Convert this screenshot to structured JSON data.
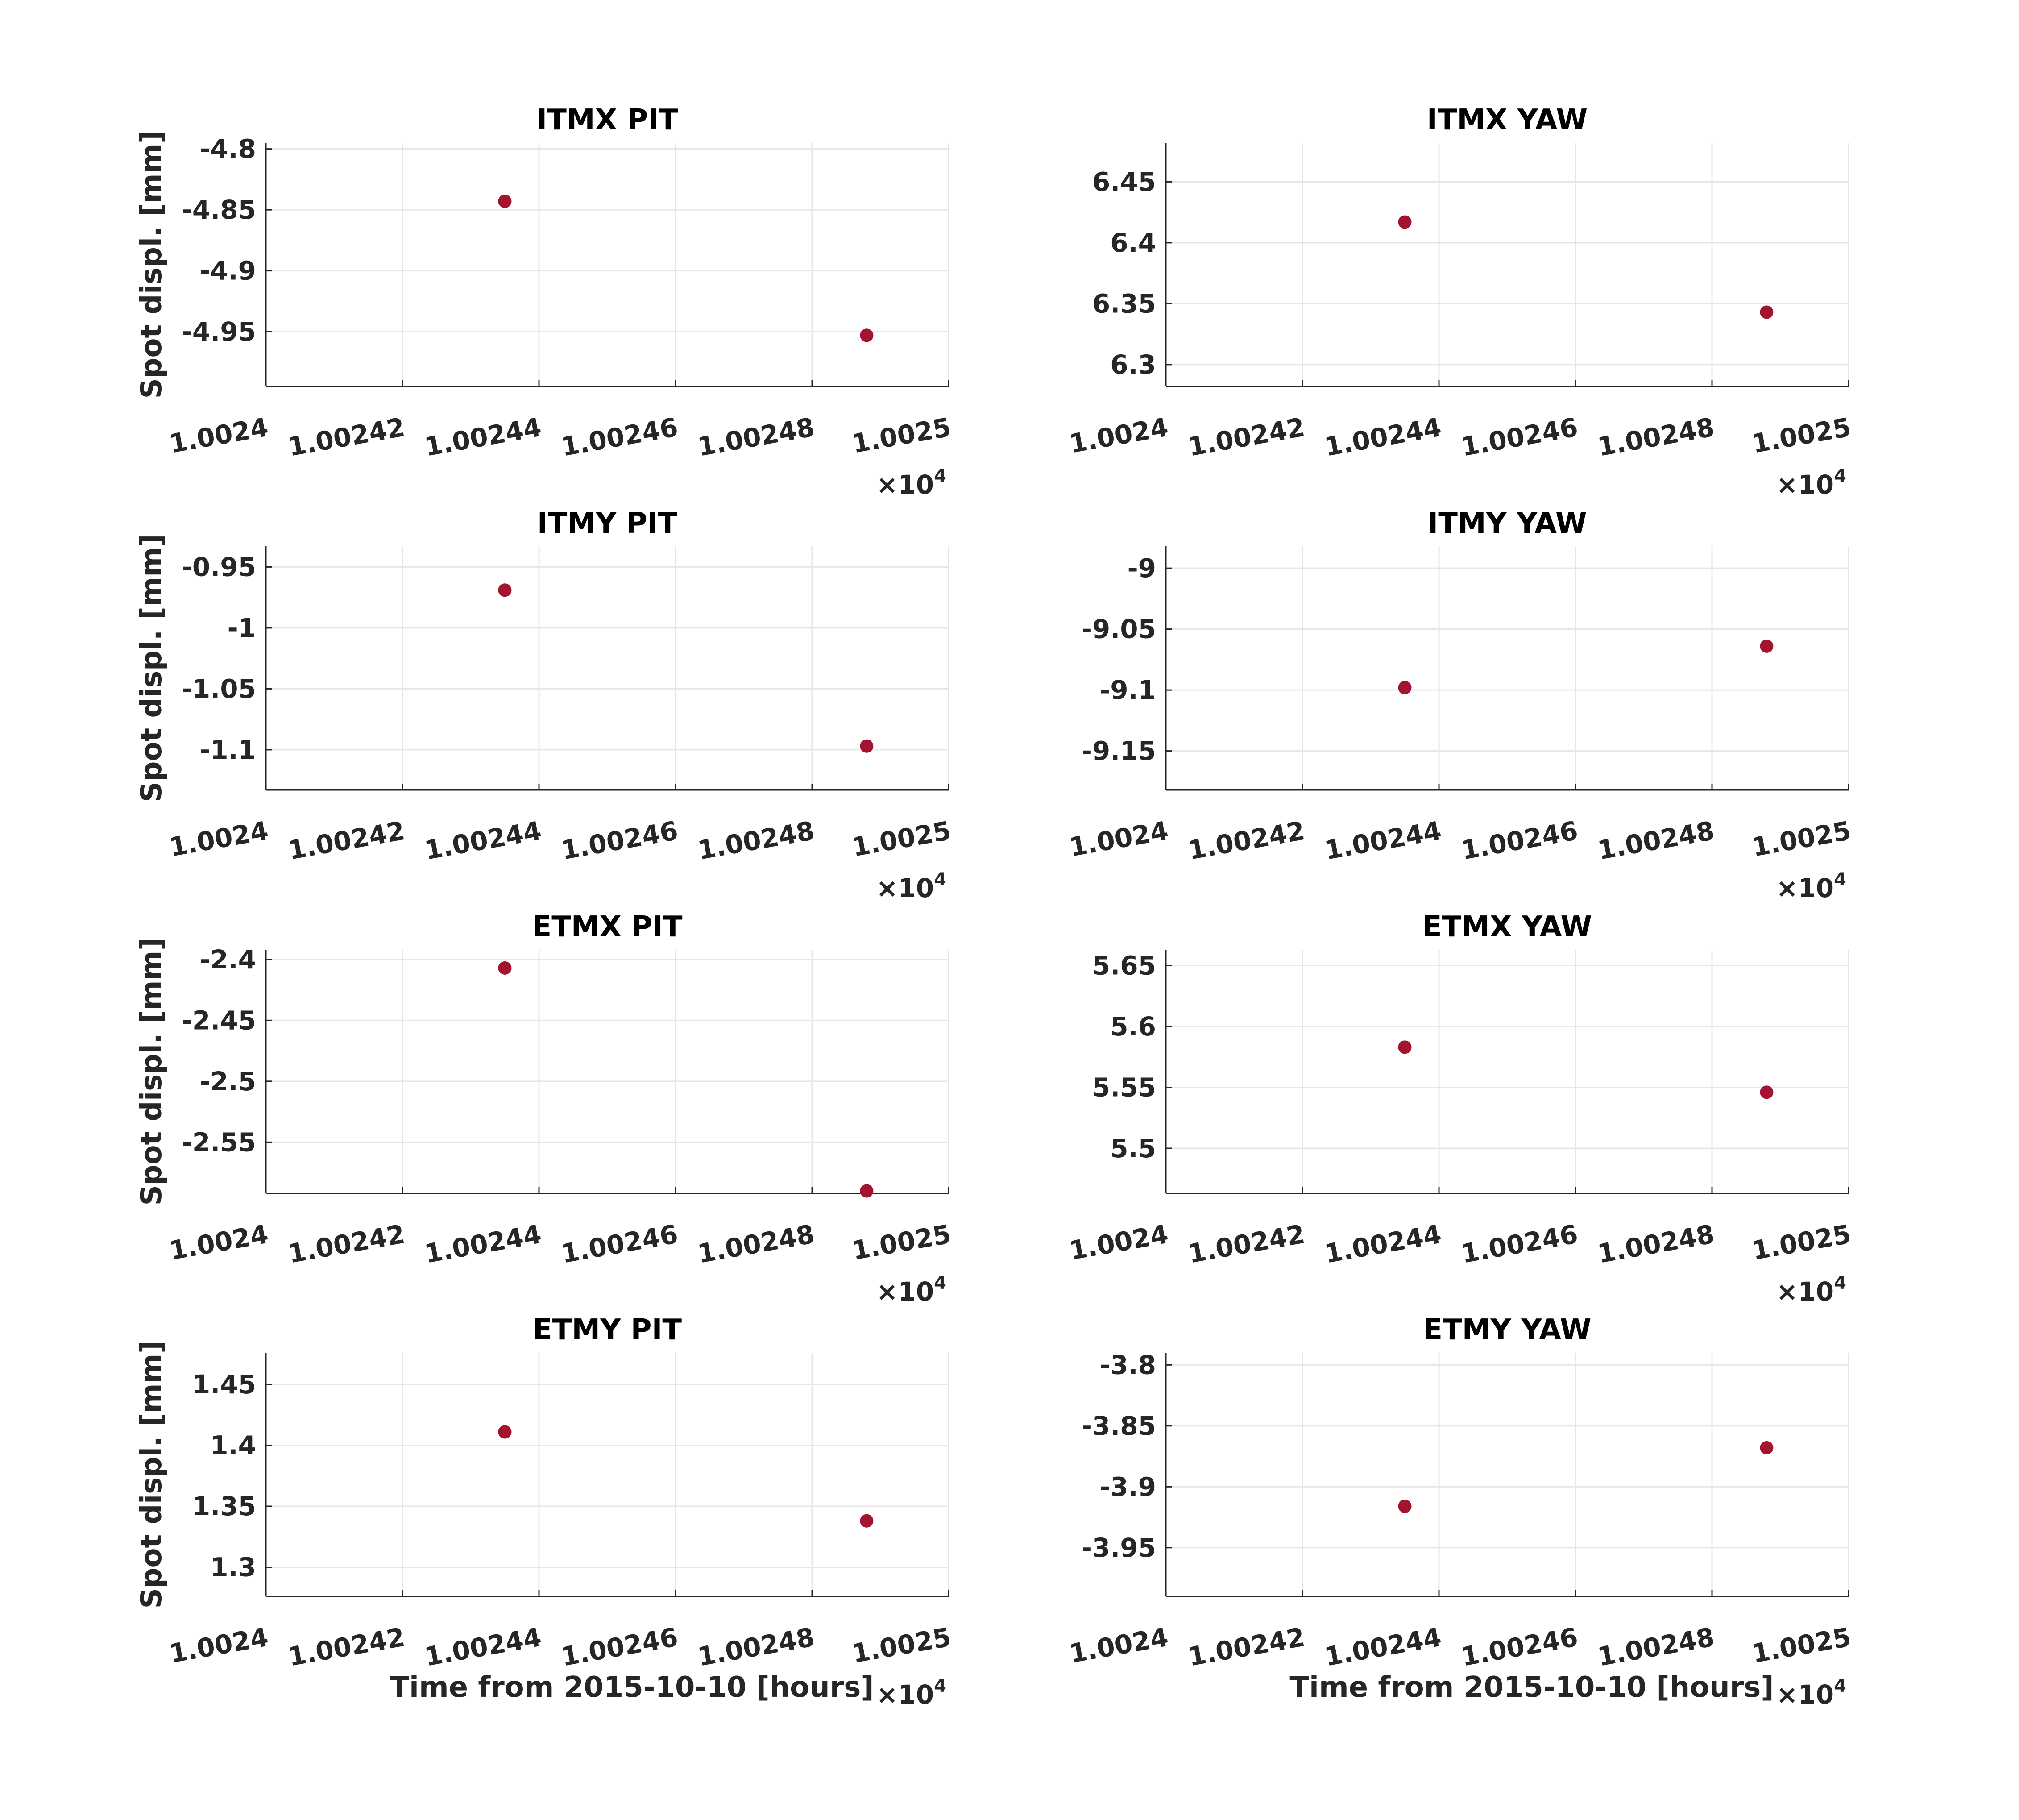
{
  "chart_data": [
    {
      "type": "scatter",
      "title": "ITMX PIT",
      "ylabel": "Spot displ. [mm]",
      "xlabel": "",
      "x_multiplier": "×10",
      "x_exponent": "4",
      "xlim": [
        1.0024,
        1.0025
      ],
      "xticks": [
        "1.0024",
        "1.00242",
        "1.00244",
        "1.00246",
        "1.00248",
        "1.0025"
      ],
      "ylim": [
        -4.995,
        -4.795
      ],
      "yticks": [
        "-4.8",
        "-4.85",
        "-4.9",
        "-4.95"
      ],
      "x": [
        1.002435,
        1.002488
      ],
      "y": [
        -4.843,
        -4.953
      ],
      "color": "#a2142f",
      "grid": true
    },
    {
      "type": "scatter",
      "title": "ITMX YAW",
      "ylabel": "",
      "xlabel": "",
      "x_multiplier": "×10",
      "x_exponent": "4",
      "xlim": [
        1.0024,
        1.0025
      ],
      "xticks": [
        "1.0024",
        "1.00242",
        "1.00244",
        "1.00246",
        "1.00248",
        "1.0025"
      ],
      "ylim": [
        6.282,
        6.482
      ],
      "yticks": [
        "6.45",
        "6.4",
        "6.35",
        "6.3"
      ],
      "x": [
        1.002435,
        1.002488
      ],
      "y": [
        6.417,
        6.343
      ],
      "color": "#a2142f",
      "grid": true
    },
    {
      "type": "scatter",
      "title": "ITMY PIT",
      "ylabel": "Spot displ. [mm]",
      "xlabel": "",
      "x_multiplier": "×10",
      "x_exponent": "4",
      "xlim": [
        1.0024,
        1.0025
      ],
      "xticks": [
        "1.0024",
        "1.00242",
        "1.00244",
        "1.00246",
        "1.00248",
        "1.0025"
      ],
      "ylim": [
        -1.133,
        -0.933
      ],
      "yticks": [
        "-0.95",
        "-1",
        "-1.05",
        "-1.1"
      ],
      "x": [
        1.002435,
        1.002488
      ],
      "y": [
        -0.969,
        -1.097
      ],
      "color": "#a2142f",
      "grid": true
    },
    {
      "type": "scatter",
      "title": "ITMY YAW",
      "ylabel": "",
      "xlabel": "",
      "x_multiplier": "×10",
      "x_exponent": "4",
      "xlim": [
        1.0024,
        1.0025
      ],
      "xticks": [
        "1.0024",
        "1.00242",
        "1.00244",
        "1.00246",
        "1.00248",
        "1.0025"
      ],
      "ylim": [
        -9.182,
        -8.982
      ],
      "yticks": [
        "-9",
        "-9.05",
        "-9.1",
        "-9.15"
      ],
      "x": [
        1.002435,
        1.002488
      ],
      "y": [
        -9.098,
        -9.064
      ],
      "color": "#a2142f",
      "grid": true
    },
    {
      "type": "scatter",
      "title": "ETMX PIT",
      "ylabel": "Spot displ. [mm]",
      "xlabel": "",
      "x_multiplier": "×10",
      "x_exponent": "4",
      "xlim": [
        1.0024,
        1.0025
      ],
      "xticks": [
        "1.0024",
        "1.00242",
        "1.00244",
        "1.00246",
        "1.00248",
        "1.0025"
      ],
      "ylim": [
        -2.592,
        -2.392
      ],
      "yticks": [
        "-2.4",
        "-2.45",
        "-2.5",
        "-2.55"
      ],
      "x": [
        1.002435,
        1.002488
      ],
      "y": [
        -2.407,
        -2.59
      ],
      "color": "#a2142f",
      "grid": true
    },
    {
      "type": "scatter",
      "title": "ETMX YAW",
      "ylabel": "",
      "xlabel": "",
      "x_multiplier": "×10",
      "x_exponent": "4",
      "xlim": [
        1.0024,
        1.0025
      ],
      "xticks": [
        "1.0024",
        "1.00242",
        "1.00244",
        "1.00246",
        "1.00248",
        "1.0025"
      ],
      "ylim": [
        5.463,
        5.663
      ],
      "yticks": [
        "5.65",
        "5.6",
        "5.55",
        "5.5"
      ],
      "x": [
        1.002435,
        1.002488
      ],
      "y": [
        5.583,
        5.546
      ],
      "color": "#a2142f",
      "grid": true
    },
    {
      "type": "scatter",
      "title": "ETMY PIT",
      "ylabel": "Spot displ. [mm]",
      "xlabel": "Time from 2015-10-10 [hours]",
      "x_multiplier": "×10",
      "x_exponent": "4",
      "xlim": [
        1.0024,
        1.0025
      ],
      "xticks": [
        "1.0024",
        "1.00242",
        "1.00244",
        "1.00246",
        "1.00248",
        "1.0025"
      ],
      "ylim": [
        1.276,
        1.476
      ],
      "yticks": [
        "1.45",
        "1.4",
        "1.35",
        "1.3"
      ],
      "x": [
        1.002435,
        1.002488
      ],
      "y": [
        1.411,
        1.338
      ],
      "color": "#a2142f",
      "grid": true
    },
    {
      "type": "scatter",
      "title": "ETMY YAW",
      "ylabel": "",
      "xlabel": "Time from 2015-10-10 [hours]",
      "x_multiplier": "×10",
      "x_exponent": "4",
      "xlim": [
        1.0024,
        1.0025
      ],
      "xticks": [
        "1.0024",
        "1.00242",
        "1.00244",
        "1.00246",
        "1.00248",
        "1.0025"
      ],
      "ylim": [
        -3.99,
        -3.79
      ],
      "yticks": [
        "-3.8",
        "-3.85",
        "-3.9",
        "-3.95"
      ],
      "x": [
        1.002435,
        1.002488
      ],
      "y": [
        -3.916,
        -3.868
      ],
      "color": "#a2142f",
      "grid": true
    }
  ]
}
